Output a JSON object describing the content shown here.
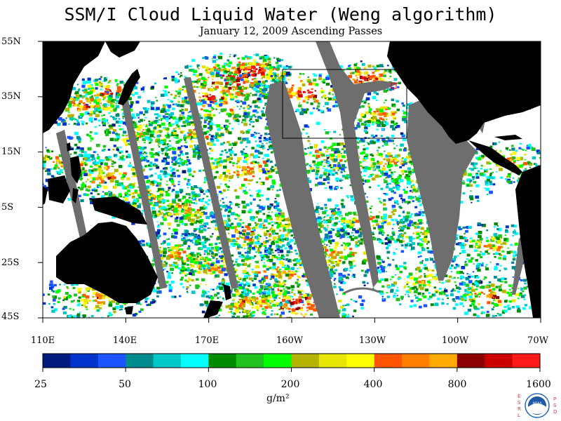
{
  "header": {
    "title": "SSM/I Cloud Liquid Water (Weng algorithm)",
    "subtitle": "January 12, 2009  Ascending Passes"
  },
  "map": {
    "region": "Pacific Ocean",
    "lat_labels": [
      "55N",
      "35N",
      "15N",
      "5S",
      "25S",
      "45S"
    ],
    "lon_labels": [
      "110E",
      "140E",
      "170E",
      "160W",
      "130W",
      "100W",
      "70W"
    ],
    "land_color": "#000000",
    "no_data_color": "#6e6e6e",
    "clear_color": "#ffffff"
  },
  "colorbar": {
    "units": "g/m²",
    "tick_labels": [
      "25",
      "50",
      "100",
      "200",
      "400",
      "800",
      "1600"
    ],
    "colors": [
      "#001a80",
      "#0033cc",
      "#1a53ff",
      "#008c8c",
      "#00c8c8",
      "#00ffff",
      "#008c00",
      "#1fc21f",
      "#00ff00",
      "#b3b300",
      "#e6e600",
      "#ffff00",
      "#ff5500",
      "#ff7f00",
      "#ffaa00",
      "#8b0000",
      "#cc0000",
      "#ff1a1a"
    ]
  },
  "logo": {
    "left_letters": "ESRL",
    "right_letters": "PSD",
    "emblem": "NOAA",
    "icon": "noaa-logo-icon"
  }
}
